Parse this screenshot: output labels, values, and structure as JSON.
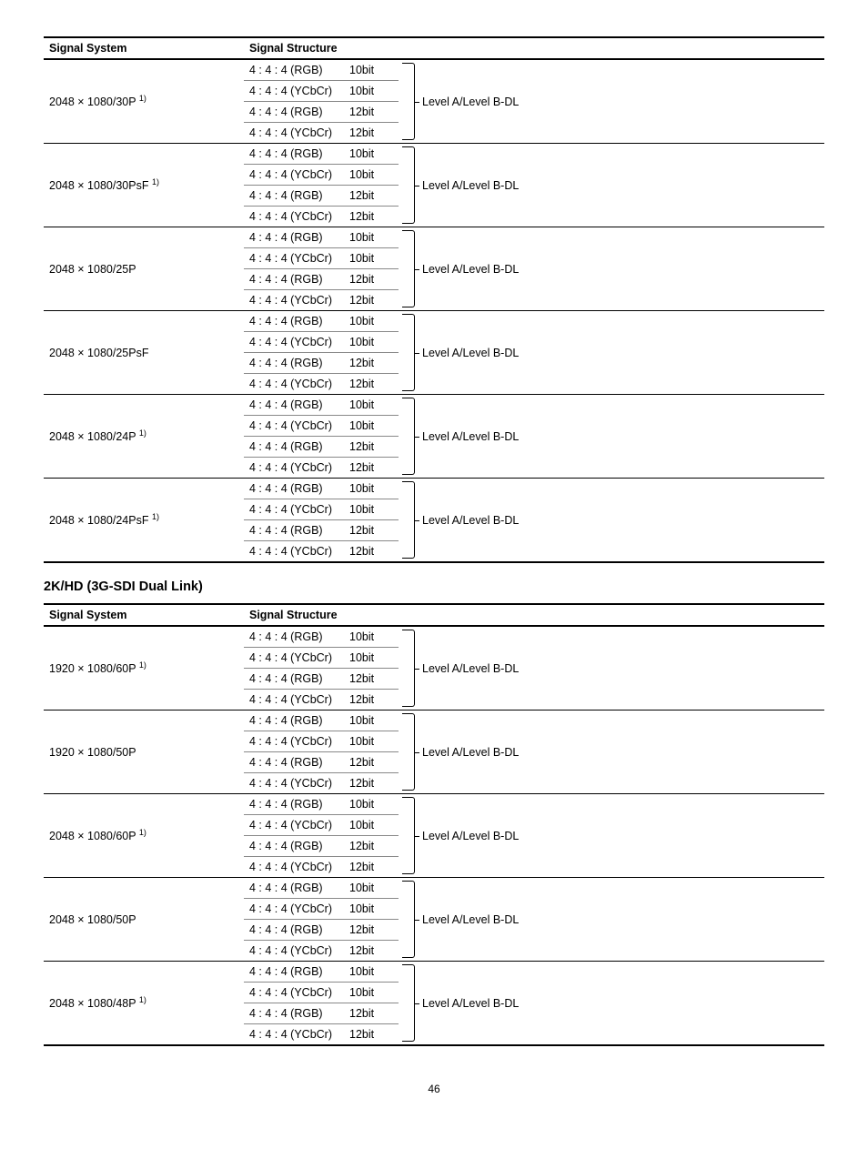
{
  "headers": {
    "signal_system": "Signal System",
    "signal_structure": "Signal Structure"
  },
  "section_heading": "2K/HD (3G-SDI Dual Link)",
  "page_number": "46",
  "formats": {
    "rgb": "4 : 4 : 4 (RGB)",
    "ycbcr": "4 : 4 : 4 (YCbCr)"
  },
  "bits": {
    "b10": "10bit",
    "b12": "12bit"
  },
  "level_text": "Level A/Level B-DL",
  "footnote": "1)",
  "table1": {
    "rows": [
      {
        "sys": "2048 × 1080/30P ",
        "note": true
      },
      {
        "sys": "2048 × 1080/30PsF ",
        "note": true
      },
      {
        "sys": "2048 × 1080/25P",
        "note": false
      },
      {
        "sys": "2048 × 1080/25PsF",
        "note": false
      },
      {
        "sys": "2048 × 1080/24P ",
        "note": true
      },
      {
        "sys": "2048 × 1080/24PsF ",
        "note": true
      }
    ]
  },
  "table2": {
    "rows": [
      {
        "sys": "1920 × 1080/60P ",
        "note": true
      },
      {
        "sys": "1920 × 1080/50P",
        "note": false
      },
      {
        "sys": "2048 × 1080/60P ",
        "note": true
      },
      {
        "sys": "2048 × 1080/50P",
        "note": false
      },
      {
        "sys": "2048 × 1080/48P ",
        "note": true
      }
    ]
  }
}
